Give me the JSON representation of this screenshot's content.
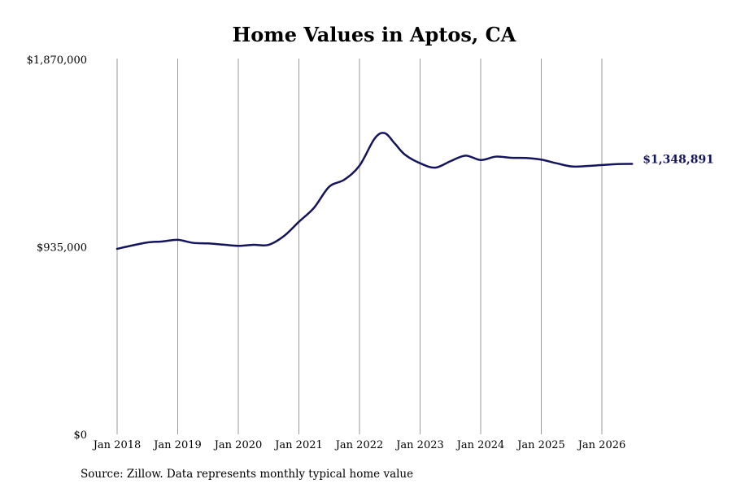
{
  "chart_data": {
    "type": "line",
    "title": "Home Values in Aptos, CA",
    "xlabel": "",
    "ylabel": "",
    "ylim": [
      0,
      1870000
    ],
    "xlim": [
      "2018-01",
      "2026-07"
    ],
    "y_ticks": [
      {
        "value": 0,
        "label": "$0"
      },
      {
        "value": 935000,
        "label": "$935,000"
      },
      {
        "value": 1870000,
        "label": "$1,870,000"
      }
    ],
    "x_ticks": [
      {
        "date": "2018-01",
        "label": "Jan 2018"
      },
      {
        "date": "2019-01",
        "label": "Jan 2019"
      },
      {
        "date": "2020-01",
        "label": "Jan 2020"
      },
      {
        "date": "2021-01",
        "label": "Jan 2021"
      },
      {
        "date": "2022-01",
        "label": "Jan 2022"
      },
      {
        "date": "2023-01",
        "label": "Jan 2023"
      },
      {
        "date": "2024-01",
        "label": "Jan 2024"
      },
      {
        "date": "2025-01",
        "label": "Jan 2025"
      },
      {
        "date": "2026-01",
        "label": "Jan 2026"
      }
    ],
    "vertical_grid": true,
    "series": [
      {
        "name": "",
        "color": "#14145e",
        "end_label": "$1,348,891",
        "points": [
          {
            "x": "2018-01",
            "y": 925000
          },
          {
            "x": "2018-04",
            "y": 942000
          },
          {
            "x": "2018-07",
            "y": 957000
          },
          {
            "x": "2018-10",
            "y": 962000
          },
          {
            "x": "2019-01",
            "y": 970000
          },
          {
            "x": "2019-04",
            "y": 955000
          },
          {
            "x": "2019-07",
            "y": 952000
          },
          {
            "x": "2019-10",
            "y": 946000
          },
          {
            "x": "2020-01",
            "y": 940000
          },
          {
            "x": "2020-04",
            "y": 945000
          },
          {
            "x": "2020-07",
            "y": 945000
          },
          {
            "x": "2020-10",
            "y": 988000
          },
          {
            "x": "2021-01",
            "y": 1060000
          },
          {
            "x": "2021-04",
            "y": 1130000
          },
          {
            "x": "2021-07",
            "y": 1235000
          },
          {
            "x": "2021-10",
            "y": 1270000
          },
          {
            "x": "2022-01",
            "y": 1340000
          },
          {
            "x": "2022-04",
            "y": 1475000
          },
          {
            "x": "2022-06",
            "y": 1502000
          },
          {
            "x": "2022-08",
            "y": 1450000
          },
          {
            "x": "2022-10",
            "y": 1395000
          },
          {
            "x": "2023-01",
            "y": 1352000
          },
          {
            "x": "2023-04",
            "y": 1330000
          },
          {
            "x": "2023-07",
            "y": 1362000
          },
          {
            "x": "2023-10",
            "y": 1390000
          },
          {
            "x": "2024-01",
            "y": 1368000
          },
          {
            "x": "2024-04",
            "y": 1385000
          },
          {
            "x": "2024-07",
            "y": 1379000
          },
          {
            "x": "2024-10",
            "y": 1378000
          },
          {
            "x": "2025-01",
            "y": 1370000
          },
          {
            "x": "2025-04",
            "y": 1352000
          },
          {
            "x": "2025-07",
            "y": 1336000
          },
          {
            "x": "2025-10",
            "y": 1338000
          },
          {
            "x": "2026-01",
            "y": 1343000
          },
          {
            "x": "2026-04",
            "y": 1348000
          },
          {
            "x": "2026-07",
            "y": 1348891
          }
        ]
      }
    ]
  },
  "source": "Source: Zillow. Data represents monthly typical home value"
}
